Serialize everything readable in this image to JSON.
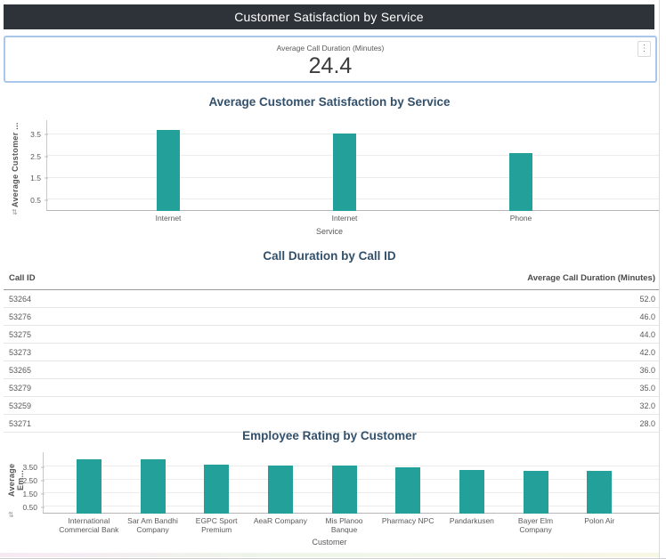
{
  "header": {
    "title": "Customer Satisfaction by Service"
  },
  "kpi": {
    "label": "Average Call Duration (Minutes)",
    "value": "24.4"
  },
  "icons": {
    "kpi_menu": "⋮",
    "axis_scroll": "⇅"
  },
  "colors": {
    "bar_teal": "#22a099",
    "titlebar_bg": "#2d3339",
    "kpi_border": "#a9c7ea",
    "chart_title": "#33506b"
  },
  "chart_data": [
    {
      "type": "bar",
      "title": "Average Customer Satisfaction by Service",
      "categories": [
        "Internet",
        "Internet",
        "Phone"
      ],
      "values": [
        3.7,
        3.55,
        2.65
      ],
      "xlabel": "Service",
      "ylabel": "Average Customer ...",
      "yticks": [
        {
          "v": 0.5,
          "label": "0.5"
        },
        {
          "v": 1.5,
          "label": "1.5"
        },
        {
          "v": 2.5,
          "label": "2.5"
        },
        {
          "v": 3.5,
          "label": "3.5"
        }
      ],
      "ylim": [
        0,
        4.15
      ],
      "grid": true,
      "legend": "none",
      "bar_color": "#22a099"
    },
    {
      "type": "table",
      "title": "Call Duration by Call ID",
      "columns": [
        "Call ID",
        "Average Call Duration (Minutes)"
      ],
      "rows": [
        [
          "53264",
          "52.0"
        ],
        [
          "53276",
          "46.0"
        ],
        [
          "53275",
          "44.0"
        ],
        [
          "53273",
          "42.0"
        ],
        [
          "53265",
          "36.0"
        ],
        [
          "53279",
          "35.0"
        ],
        [
          "53259",
          "32.0"
        ],
        [
          "53271",
          "28.0"
        ]
      ]
    },
    {
      "type": "bar",
      "title": "Employee Rating by Customer",
      "categories": [
        "International Commercial Bank",
        "Sar Am Bandhi Company",
        "EGPC Sport Premium",
        "AeaR Company",
        "Mis Planoo Banque",
        "Pharmacy NPC",
        "Pandarkusen",
        "Bayer Elm Company",
        "Polon Air"
      ],
      "values": [
        4.1,
        4.1,
        3.7,
        3.6,
        3.6,
        3.5,
        3.25,
        3.2,
        3.2
      ],
      "xlabel": "Customer",
      "ylabel": "Average Em...",
      "yticks": [
        {
          "v": 0.5,
          "label": "0.50"
        },
        {
          "v": 1.5,
          "label": "1.50"
        },
        {
          "v": 2.5,
          "label": "2.50"
        },
        {
          "v": 3.5,
          "label": "3.50"
        }
      ],
      "ylim": [
        0,
        4.6
      ],
      "grid": true,
      "legend": "none",
      "bar_color": "#22a099"
    }
  ]
}
